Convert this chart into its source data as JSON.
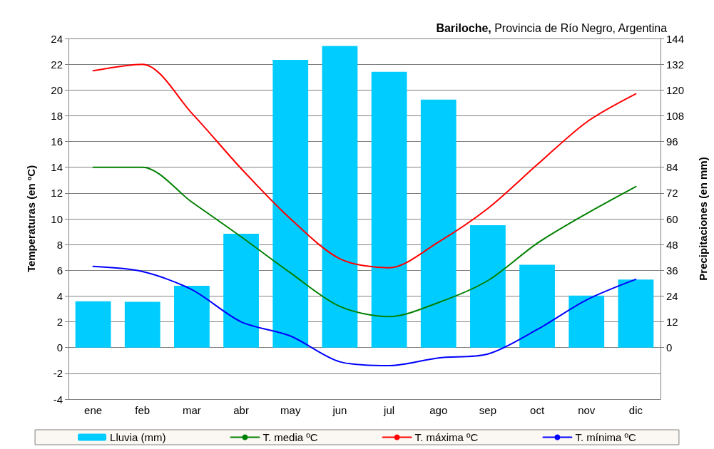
{
  "chart_data": {
    "type": "bar",
    "title": "Bariloche, Provincia de Río Negro, Argentina",
    "ylabel": "Temperaturas (en ºC)",
    "y2label": "Precipitaciones (en mm)",
    "categories": [
      "ene",
      "feb",
      "mar",
      "abr",
      "may",
      "jun",
      "jul",
      "ago",
      "sep",
      "oct",
      "nov",
      "dic"
    ],
    "series": [
      {
        "name": "Lluvia (mm)",
        "axis": "y2",
        "color": "#00ccff",
        "values": [
          21.6,
          21.3,
          28.8,
          53,
          134,
          140.5,
          128.5,
          115.5,
          57,
          38.6,
          24.2,
          31.7
        ]
      },
      {
        "name": "T. media ºC",
        "type": "line",
        "color": "#008000",
        "values": [
          14,
          14,
          11.3,
          8.6,
          5.8,
          3.2,
          2.4,
          3.5,
          5.2,
          8.1,
          10.4,
          12.5
        ]
      },
      {
        "name": "T. máxima ºC",
        "type": "line",
        "color": "#ff0000",
        "values": [
          21.5,
          22,
          18.2,
          13.9,
          10,
          6.9,
          6.2,
          8.2,
          10.8,
          14.2,
          17.5,
          19.7
        ]
      },
      {
        "name": "T. mínima ºC",
        "type": "line",
        "color": "#0000ff",
        "values": [
          6.3,
          5.9,
          4.5,
          2,
          0.9,
          -1.1,
          -1.4,
          -0.8,
          -0.5,
          1.4,
          3.7,
          5.3
        ]
      }
    ],
    "ylim": [
      -4,
      24
    ],
    "yticks": [
      -4,
      -2,
      0,
      2,
      4,
      6,
      8,
      10,
      12,
      14,
      16,
      18,
      20,
      22,
      24
    ],
    "y2lim": [
      -24,
      144
    ],
    "y2ticks": [
      0,
      12,
      24,
      36,
      48,
      60,
      72,
      84,
      96,
      108,
      120,
      132,
      144
    ],
    "grid": "y",
    "legend": "bottom",
    "marker": "none",
    "line_style": "solid"
  }
}
